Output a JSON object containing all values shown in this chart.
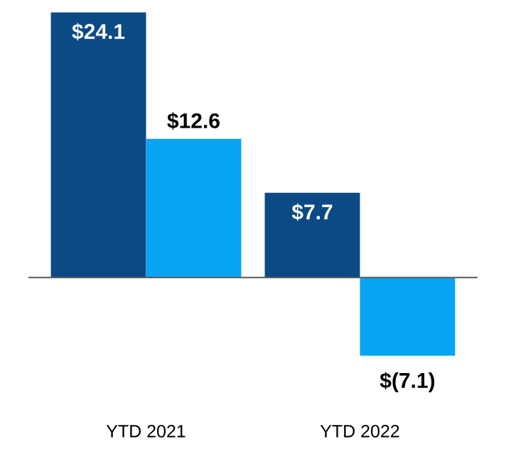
{
  "chart_data": {
    "type": "bar",
    "categories": [
      "YTD 2021",
      "YTD 2022"
    ],
    "series": [
      {
        "color": "#0b4a84",
        "values": [
          24.1,
          7.7
        ],
        "value_labels": [
          "$24.1",
          "$7.7"
        ]
      },
      {
        "color": "#08a4f2",
        "values": [
          12.6,
          -7.1
        ],
        "value_labels": [
          "$12.6",
          "$(7.1)"
        ]
      }
    ]
  }
}
